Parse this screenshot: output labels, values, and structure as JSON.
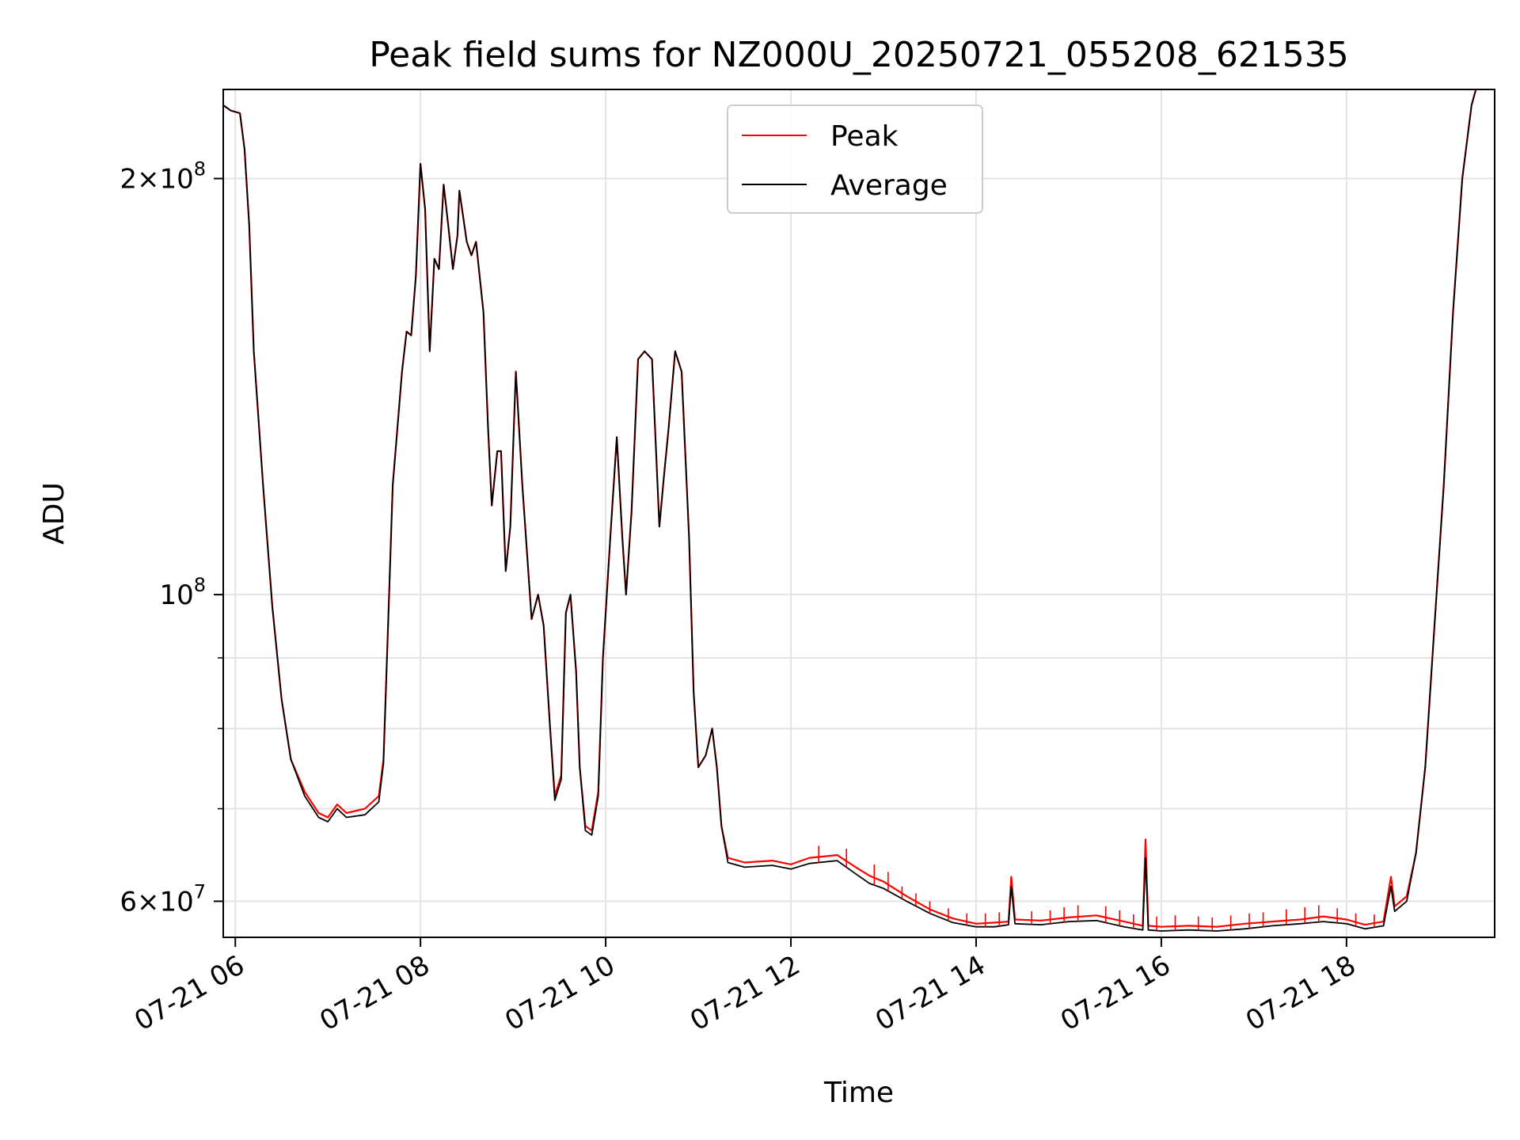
{
  "chart_data": {
    "type": "line",
    "title": "Peak field sums for NZ000U_20250721_055208_621535",
    "xlabel": "Time",
    "ylabel": "ADU",
    "x_unit": "hour of day (2025-07-21)",
    "xlim": [
      5.87,
      19.6
    ],
    "ylim": [
      56500000,
      232000000
    ],
    "yscale": "log",
    "grid": true,
    "legend": {
      "placement": "top-center",
      "entries": [
        {
          "label": "Peak",
          "color": "#ff0000"
        },
        {
          "label": "Average",
          "color": "#000000"
        }
      ]
    },
    "x_ticks": [
      {
        "value": 6,
        "label": "07-21 06"
      },
      {
        "value": 8,
        "label": "07-21 08"
      },
      {
        "value": 10,
        "label": "07-21 10"
      },
      {
        "value": 12,
        "label": "07-21 12"
      },
      {
        "value": 14,
        "label": "07-21 14"
      },
      {
        "value": 16,
        "label": "07-21 16"
      },
      {
        "value": 18,
        "label": "07-21 18"
      }
    ],
    "y_ticks_major": [
      {
        "value": 60000000,
        "mantissa": "6",
        "exponent": "7"
      },
      {
        "value": 100000000,
        "mantissa": "",
        "exponent": "8"
      },
      {
        "value": 200000000,
        "mantissa": "2",
        "exponent": "8"
      }
    ],
    "y_ticks_minor": [
      70000000,
      80000000,
      90000000
    ],
    "series": [
      {
        "name": "Peak",
        "color": "#ff0000",
        "points": [
          [
            5.87,
            226000000
          ],
          [
            5.95,
            224000000
          ],
          [
            6.05,
            223000000
          ],
          [
            6.1,
            210000000
          ],
          [
            6.15,
            185000000
          ],
          [
            6.2,
            150000000
          ],
          [
            6.3,
            120000000
          ],
          [
            6.4,
            98000000
          ],
          [
            6.5,
            84000000
          ],
          [
            6.6,
            76000000
          ],
          [
            6.75,
            72000000
          ],
          [
            6.9,
            69500000
          ],
          [
            7.0,
            69000000
          ],
          [
            7.1,
            70500000
          ],
          [
            7.2,
            69500000
          ],
          [
            7.4,
            70000000
          ],
          [
            7.55,
            71500000
          ],
          [
            7.6,
            76000000
          ],
          [
            7.65,
            95000000
          ],
          [
            7.7,
            120000000
          ],
          [
            7.8,
            145000000
          ],
          [
            7.85,
            155000000
          ],
          [
            7.9,
            154000000
          ],
          [
            7.95,
            170000000
          ],
          [
            8.0,
            205000000
          ],
          [
            8.05,
            190000000
          ],
          [
            8.1,
            150000000
          ],
          [
            8.15,
            175000000
          ],
          [
            8.2,
            172000000
          ],
          [
            8.25,
            198000000
          ],
          [
            8.3,
            185000000
          ],
          [
            8.35,
            172000000
          ],
          [
            8.4,
            182000000
          ],
          [
            8.42,
            196000000
          ],
          [
            8.5,
            180000000
          ],
          [
            8.55,
            176000000
          ],
          [
            8.6,
            180000000
          ],
          [
            8.68,
            160000000
          ],
          [
            8.73,
            132000000
          ],
          [
            8.77,
            116000000
          ],
          [
            8.83,
            127000000
          ],
          [
            8.87,
            127000000
          ],
          [
            8.92,
            104000000
          ],
          [
            8.97,
            112000000
          ],
          [
            9.03,
            145000000
          ],
          [
            9.1,
            120000000
          ],
          [
            9.2,
            96000000
          ],
          [
            9.27,
            100000000
          ],
          [
            9.33,
            95000000
          ],
          [
            9.4,
            80000000
          ],
          [
            9.45,
            71500000
          ],
          [
            9.52,
            74000000
          ],
          [
            9.57,
            97000000
          ],
          [
            9.62,
            100000000
          ],
          [
            9.68,
            88000000
          ],
          [
            9.72,
            75000000
          ],
          [
            9.78,
            68000000
          ],
          [
            9.85,
            67500000
          ],
          [
            9.92,
            72000000
          ],
          [
            9.97,
            90000000
          ],
          [
            10.05,
            110000000
          ],
          [
            10.12,
            130000000
          ],
          [
            10.18,
            110000000
          ],
          [
            10.22,
            100000000
          ],
          [
            10.28,
            115000000
          ],
          [
            10.35,
            148000000
          ],
          [
            10.42,
            150000000
          ],
          [
            10.5,
            148000000
          ],
          [
            10.58,
            112000000
          ],
          [
            10.63,
            122000000
          ],
          [
            10.68,
            132000000
          ],
          [
            10.75,
            150000000
          ],
          [
            10.82,
            145000000
          ],
          [
            10.9,
            110000000
          ],
          [
            10.95,
            85000000
          ],
          [
            11.0,
            75000000
          ],
          [
            11.08,
            76500000
          ],
          [
            11.15,
            80000000
          ],
          [
            11.2,
            75000000
          ],
          [
            11.25,
            68000000
          ],
          [
            11.32,
            64500000
          ],
          [
            11.5,
            64000000
          ],
          [
            11.8,
            64200000
          ],
          [
            12.0,
            63800000
          ],
          [
            12.2,
            64500000
          ],
          [
            12.5,
            64800000
          ],
          [
            12.7,
            63500000
          ],
          [
            12.85,
            62600000
          ],
          [
            13.0,
            62000000
          ],
          [
            13.25,
            60500000
          ],
          [
            13.5,
            59200000
          ],
          [
            13.75,
            58300000
          ],
          [
            14.0,
            57800000
          ],
          [
            14.2,
            57900000
          ],
          [
            14.35,
            58000000
          ],
          [
            14.38,
            62500000
          ],
          [
            14.42,
            58200000
          ],
          [
            14.7,
            58100000
          ],
          [
            15.0,
            58400000
          ],
          [
            15.3,
            58600000
          ],
          [
            15.6,
            58000000
          ],
          [
            15.8,
            57600000
          ],
          [
            15.83,
            66500000
          ],
          [
            15.86,
            57600000
          ],
          [
            16.0,
            57500000
          ],
          [
            16.3,
            57600000
          ],
          [
            16.6,
            57500000
          ],
          [
            16.9,
            57800000
          ],
          [
            17.2,
            58000000
          ],
          [
            17.5,
            58200000
          ],
          [
            17.75,
            58500000
          ],
          [
            18.0,
            58200000
          ],
          [
            18.2,
            57700000
          ],
          [
            18.4,
            58000000
          ],
          [
            18.48,
            62500000
          ],
          [
            18.52,
            59500000
          ],
          [
            18.65,
            60500000
          ],
          [
            18.75,
            65000000
          ],
          [
            18.85,
            75000000
          ],
          [
            18.95,
            95000000
          ],
          [
            19.05,
            120000000
          ],
          [
            19.15,
            160000000
          ],
          [
            19.25,
            200000000
          ],
          [
            19.35,
            226000000
          ],
          [
            19.42,
            235000000
          ]
        ]
      },
      {
        "name": "Average",
        "color": "#000000",
        "points": [
          [
            5.87,
            226000000
          ],
          [
            5.95,
            224000000
          ],
          [
            6.05,
            223000000
          ],
          [
            6.1,
            210000000
          ],
          [
            6.15,
            185000000
          ],
          [
            6.2,
            150000000
          ],
          [
            6.3,
            120000000
          ],
          [
            6.4,
            98000000
          ],
          [
            6.5,
            84000000
          ],
          [
            6.6,
            76000000
          ],
          [
            6.75,
            71500000
          ],
          [
            6.9,
            69000000
          ],
          [
            7.0,
            68500000
          ],
          [
            7.1,
            70000000
          ],
          [
            7.2,
            69000000
          ],
          [
            7.4,
            69300000
          ],
          [
            7.55,
            70800000
          ],
          [
            7.6,
            75500000
          ],
          [
            7.65,
            95000000
          ],
          [
            7.7,
            120000000
          ],
          [
            7.8,
            145000000
          ],
          [
            7.85,
            155000000
          ],
          [
            7.9,
            154000000
          ],
          [
            7.95,
            170000000
          ],
          [
            8.0,
            205000000
          ],
          [
            8.05,
            190000000
          ],
          [
            8.1,
            150000000
          ],
          [
            8.15,
            175000000
          ],
          [
            8.2,
            172000000
          ],
          [
            8.25,
            198000000
          ],
          [
            8.3,
            185000000
          ],
          [
            8.35,
            172000000
          ],
          [
            8.4,
            182000000
          ],
          [
            8.42,
            196000000
          ],
          [
            8.5,
            180000000
          ],
          [
            8.55,
            176000000
          ],
          [
            8.6,
            180000000
          ],
          [
            8.68,
            160000000
          ],
          [
            8.73,
            132000000
          ],
          [
            8.77,
            116000000
          ],
          [
            8.83,
            127000000
          ],
          [
            8.87,
            127000000
          ],
          [
            8.92,
            104000000
          ],
          [
            8.97,
            112000000
          ],
          [
            9.03,
            145000000
          ],
          [
            9.1,
            120000000
          ],
          [
            9.2,
            96000000
          ],
          [
            9.27,
            100000000
          ],
          [
            9.33,
            95000000
          ],
          [
            9.4,
            80000000
          ],
          [
            9.45,
            71000000
          ],
          [
            9.52,
            73500000
          ],
          [
            9.57,
            97000000
          ],
          [
            9.62,
            100000000
          ],
          [
            9.68,
            88000000
          ],
          [
            9.72,
            75000000
          ],
          [
            9.78,
            67500000
          ],
          [
            9.85,
            67000000
          ],
          [
            9.92,
            71500000
          ],
          [
            9.97,
            90000000
          ],
          [
            10.05,
            110000000
          ],
          [
            10.12,
            130000000
          ],
          [
            10.18,
            110000000
          ],
          [
            10.22,
            100000000
          ],
          [
            10.28,
            115000000
          ],
          [
            10.35,
            148000000
          ],
          [
            10.42,
            150000000
          ],
          [
            10.5,
            148000000
          ],
          [
            10.58,
            112000000
          ],
          [
            10.63,
            122000000
          ],
          [
            10.68,
            132000000
          ],
          [
            10.75,
            150000000
          ],
          [
            10.82,
            145000000
          ],
          [
            10.9,
            110000000
          ],
          [
            10.95,
            85000000
          ],
          [
            11.0,
            75000000
          ],
          [
            11.08,
            76500000
          ],
          [
            11.15,
            80000000
          ],
          [
            11.2,
            75000000
          ],
          [
            11.25,
            68000000
          ],
          [
            11.32,
            64000000
          ],
          [
            11.5,
            63500000
          ],
          [
            11.8,
            63700000
          ],
          [
            12.0,
            63300000
          ],
          [
            12.2,
            63900000
          ],
          [
            12.5,
            64200000
          ],
          [
            12.7,
            62800000
          ],
          [
            12.85,
            61800000
          ],
          [
            13.0,
            61300000
          ],
          [
            13.25,
            60000000
          ],
          [
            13.5,
            58800000
          ],
          [
            13.75,
            57900000
          ],
          [
            14.0,
            57500000
          ],
          [
            14.2,
            57500000
          ],
          [
            14.35,
            57700000
          ],
          [
            14.38,
            61500000
          ],
          [
            14.42,
            57800000
          ],
          [
            14.7,
            57700000
          ],
          [
            15.0,
            58000000
          ],
          [
            15.3,
            58100000
          ],
          [
            15.6,
            57500000
          ],
          [
            15.8,
            57200000
          ],
          [
            15.83,
            64500000
          ],
          [
            15.86,
            57200000
          ],
          [
            16.0,
            57100000
          ],
          [
            16.3,
            57200000
          ],
          [
            16.6,
            57100000
          ],
          [
            16.9,
            57300000
          ],
          [
            17.2,
            57600000
          ],
          [
            17.5,
            57800000
          ],
          [
            17.75,
            58000000
          ],
          [
            18.0,
            57800000
          ],
          [
            18.2,
            57300000
          ],
          [
            18.4,
            57600000
          ],
          [
            18.48,
            61500000
          ],
          [
            18.52,
            59000000
          ],
          [
            18.65,
            60000000
          ],
          [
            18.75,
            65000000
          ],
          [
            18.85,
            75000000
          ],
          [
            18.95,
            95000000
          ],
          [
            19.05,
            120000000
          ],
          [
            19.15,
            160000000
          ],
          [
            19.25,
            200000000
          ],
          [
            19.35,
            226000000
          ],
          [
            19.42,
            235000000
          ]
        ]
      }
    ],
    "peak_spikes": [
      [
        13.2,
        61500000
      ],
      [
        13.35,
        60800000
      ],
      [
        13.5,
        60000000
      ],
      [
        13.7,
        59300000
      ],
      [
        13.9,
        58800000
      ],
      [
        14.1,
        58800000
      ],
      [
        14.25,
        58900000
      ],
      [
        14.6,
        59000000
      ],
      [
        14.8,
        59100000
      ],
      [
        14.95,
        59400000
      ],
      [
        15.1,
        59600000
      ],
      [
        15.4,
        59500000
      ],
      [
        15.55,
        59100000
      ],
      [
        15.7,
        58700000
      ],
      [
        15.95,
        58500000
      ],
      [
        16.15,
        58600000
      ],
      [
        16.4,
        58500000
      ],
      [
        16.55,
        58400000
      ],
      [
        16.75,
        58600000
      ],
      [
        16.95,
        58800000
      ],
      [
        17.1,
        58900000
      ],
      [
        17.35,
        59200000
      ],
      [
        17.55,
        59400000
      ],
      [
        17.7,
        59600000
      ],
      [
        17.9,
        59300000
      ],
      [
        18.1,
        58800000
      ],
      [
        18.3,
        58700000
      ],
      [
        12.3,
        65800000
      ],
      [
        12.6,
        65500000
      ],
      [
        12.9,
        63800000
      ],
      [
        13.05,
        63000000
      ]
    ]
  }
}
